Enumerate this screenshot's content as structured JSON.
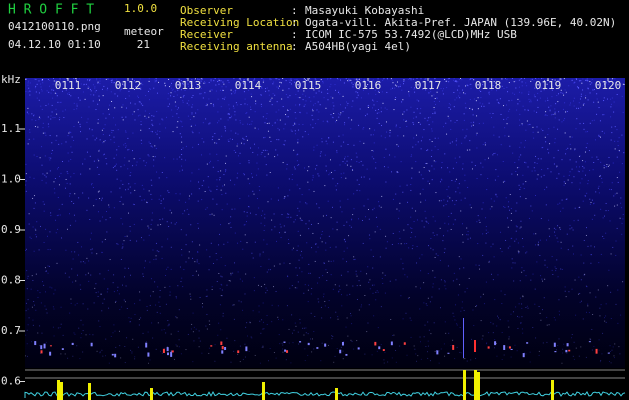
{
  "header": {
    "app_name": "H R O F F T",
    "version": "1.0.0",
    "filename": "0412100110.png",
    "meteor_label": "meteor",
    "datetime": "04.12.10 01:10",
    "meteor_count": 21
  },
  "separator": ":",
  "info": [
    {
      "label": "Observer",
      "value": "Masayuki Kobayashi"
    },
    {
      "label": "Receiving Location",
      "value": "Ogata-vill. Akita-Pref. JAPAN (139.96E, 40.02N)"
    },
    {
      "label": "Receiver",
      "value": "ICOM IC-575 53.7492(@LCD)MHz USB"
    },
    {
      "label": "Receiving antenna",
      "value": "A504HB(yagi 4el)"
    }
  ],
  "spectrogram": {
    "y_unit": "kHz",
    "y_ticks": [
      "1.1",
      "1.0",
      "0.9",
      "0.8",
      "0.7",
      "0.6"
    ],
    "time_labels": [
      "0111",
      "0112",
      "0113",
      "0114",
      "0115",
      "0116",
      "0117",
      "0118",
      "0119",
      "0120"
    ]
  }
}
